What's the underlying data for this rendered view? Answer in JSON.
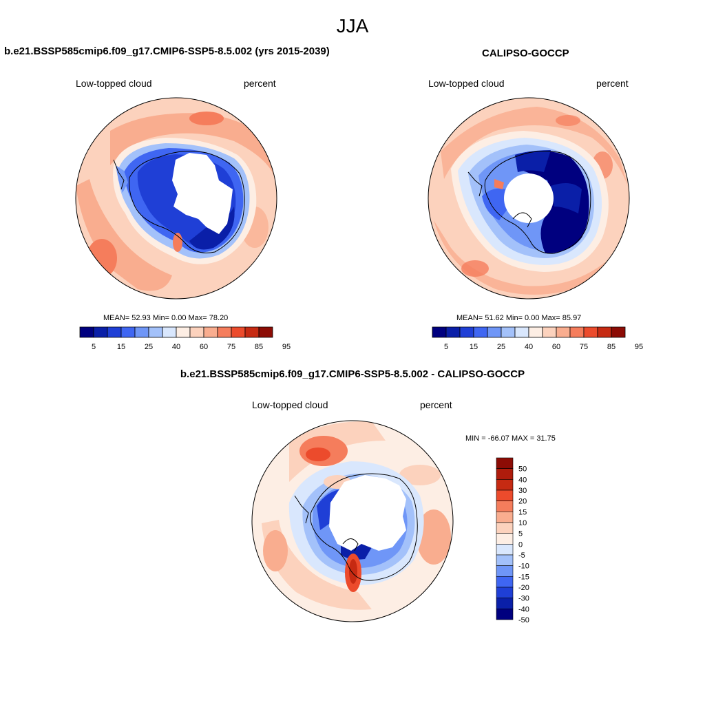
{
  "figure": {
    "season_title": "JJA",
    "variable_label": "Low-topped cloud",
    "units_label": "percent"
  },
  "panels": {
    "model": {
      "title": "b.e21.BSSP585cmip6.f09_g17.CMIP6-SSP5-8.5.002 (yrs 2015-2039)",
      "stats": "MEAN=  52.93  Min=   0.00  Max=  78.20"
    },
    "obs": {
      "title": "CALIPSO-GOCCP",
      "stats": "MEAN=  51.62  Min=   0.00  Max=  85.97"
    },
    "diff": {
      "title": "b.e21.BSSP585cmip6.f09_g17.CMIP6-SSP5-8.5.002 - CALIPSO-GOCCP",
      "stats": "MIN = -66.07 MAX =  31.75"
    }
  },
  "colorbars": {
    "abs": {
      "colors": [
        "#00007f",
        "#0a1fa8",
        "#1f3fd6",
        "#3f66f2",
        "#6f96f7",
        "#a3c1fa",
        "#d9e7fd",
        "#fdeee4",
        "#fcd2bd",
        "#f9ad8f",
        "#f57d5c",
        "#ec4b2c",
        "#c62a12",
        "#8c0c05"
      ],
      "tick_labels": [
        "5",
        "15",
        "25",
        "40",
        "60",
        "75",
        "85",
        "95"
      ]
    },
    "diff": {
      "colors": [
        "#00007f",
        "#0a1fa8",
        "#1f3fd6",
        "#3f66f2",
        "#6f96f7",
        "#a3c1fa",
        "#d9e7fd",
        "#fdeee4",
        "#fcd2bd",
        "#f9ad8f",
        "#f57d5c",
        "#ec4b2c",
        "#c62a12",
        "#af1c0c",
        "#8c0c05"
      ],
      "tick_labels": [
        "-50",
        "-40",
        "-30",
        "-20",
        "-15",
        "-10",
        "-5",
        "0",
        "5",
        "10",
        "15",
        "20",
        "30",
        "40",
        "50"
      ]
    }
  }
}
